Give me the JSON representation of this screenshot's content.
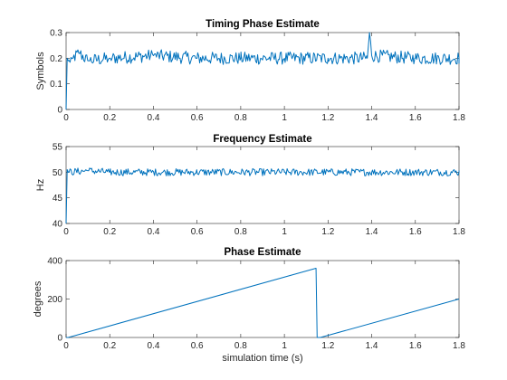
{
  "chart_data": [
    {
      "type": "line",
      "title": "Timing Phase Estimate",
      "xlabel": "",
      "ylabel": "Symbols",
      "xlim": [
        0,
        1.8
      ],
      "ylim": [
        0,
        0.3
      ],
      "xticks": [
        0,
        0.2,
        0.4,
        0.6,
        0.8,
        1,
        1.2,
        1.4,
        1.6,
        1.8
      ],
      "xtick_labels": [
        "0",
        "0.2",
        "0.4",
        "0.6",
        "0.8",
        "1",
        "1.2",
        "1.4",
        "1.6",
        "1.8"
      ],
      "yticks": [
        0,
        0.1,
        0.2,
        0.3
      ],
      "ytick_labels": [
        "0",
        "0.1",
        "0.2",
        "0.3"
      ],
      "color": "#0072BD",
      "x": [
        0,
        0.005,
        0.01,
        0.03,
        0.06,
        0.1,
        0.2,
        0.4,
        0.6,
        0.8,
        1.0,
        1.2,
        1.38,
        1.39,
        1.4,
        1.6,
        1.8
      ],
      "y": [
        0,
        0.2,
        0.19,
        0.2,
        0.22,
        0.19,
        0.2,
        0.21,
        0.2,
        0.2,
        0.2,
        0.2,
        0.2,
        0.3,
        0.21,
        0.2,
        0.2
      ],
      "noise_amplitude": 0.025
    },
    {
      "type": "line",
      "title": "Frequency Estimate",
      "xlabel": "",
      "ylabel": "Hz",
      "xlim": [
        0,
        1.8
      ],
      "ylim": [
        40,
        55
      ],
      "xticks": [
        0,
        0.2,
        0.4,
        0.6,
        0.8,
        1,
        1.2,
        1.4,
        1.6,
        1.8
      ],
      "xtick_labels": [
        "0",
        "0.2",
        "0.4",
        "0.6",
        "0.8",
        "1",
        "1.2",
        "1.4",
        "1.6",
        "1.8"
      ],
      "yticks": [
        40,
        45,
        50,
        55
      ],
      "ytick_labels": [
        "40",
        "45",
        "50",
        "55"
      ],
      "color": "#0072BD",
      "x": [
        0,
        0.005,
        0.01,
        0.1,
        0.2,
        0.6,
        1.0,
        1.4,
        1.8
      ],
      "y": [
        40,
        50.5,
        50,
        50.3,
        50,
        50,
        50,
        50,
        50
      ],
      "noise_amplitude": 0.7
    },
    {
      "type": "line",
      "title": "Phase Estimate",
      "xlabel": "simulation time (s)",
      "ylabel": "degrees",
      "xlim": [
        0,
        1.8
      ],
      "ylim": [
        0,
        400
      ],
      "xticks": [
        0,
        0.2,
        0.4,
        0.6,
        0.8,
        1,
        1.2,
        1.4,
        1.6,
        1.8
      ],
      "xtick_labels": [
        "0",
        "0.2",
        "0.4",
        "0.6",
        "0.8",
        "1",
        "1.2",
        "1.4",
        "1.6",
        "1.8"
      ],
      "yticks": [
        0,
        200,
        400
      ],
      "ytick_labels": [
        "0",
        "200",
        "400"
      ],
      "color": "#0072BD",
      "x": [
        0,
        0.01,
        1.145,
        1.15,
        1.165,
        1.8
      ],
      "y": [
        0,
        0,
        360,
        0,
        0,
        200
      ],
      "noise_amplitude": 0
    }
  ]
}
